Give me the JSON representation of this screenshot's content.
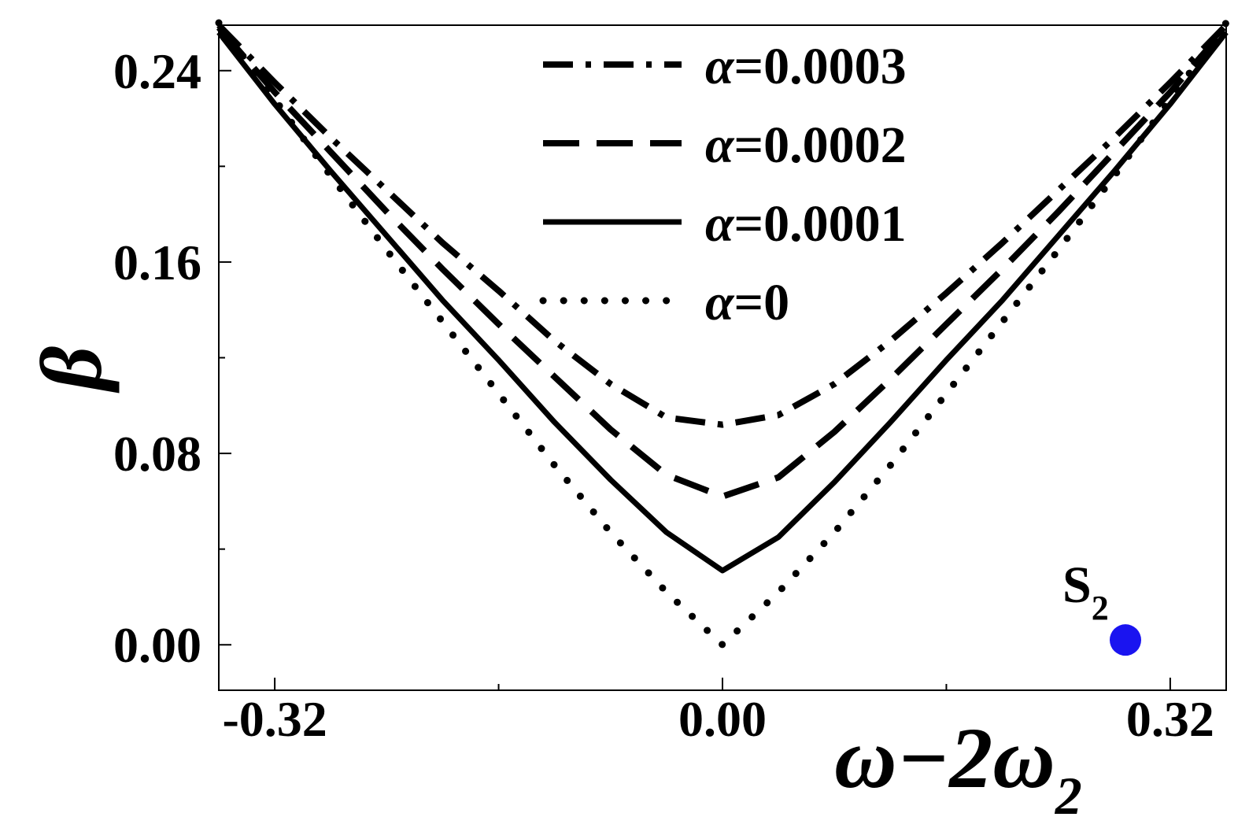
{
  "chart_data": {
    "type": "line",
    "title": "",
    "xlabel": "ω−2ω₂",
    "xlabel_main": "ω−2ω",
    "xlabel_sub": "2",
    "ylabel": "β",
    "xlim": [
      -0.36,
      0.36
    ],
    "ylim": [
      -0.019,
      0.259
    ],
    "x_ticks": [
      -0.32,
      0.0,
      0.32
    ],
    "x_tick_labels": [
      "-0.32",
      "0.00",
      "0.32"
    ],
    "x_minor_ticks": [
      -0.16,
      0.16
    ],
    "y_ticks": [
      0.0,
      0.08,
      0.16,
      0.24
    ],
    "y_tick_labels": [
      "0.00",
      "0.08",
      "0.16",
      "0.24"
    ],
    "y_minor_ticks": [
      0.04,
      0.12,
      0.2
    ],
    "grid": false,
    "legend_position": "top-center",
    "x": [
      -0.36,
      -0.32,
      -0.28,
      -0.24,
      -0.2,
      -0.16,
      -0.12,
      -0.08,
      -0.04,
      0.0,
      0.04,
      0.08,
      0.12,
      0.16,
      0.2,
      0.24,
      0.28,
      0.32,
      0.36
    ],
    "series": [
      {
        "name": "α=0.0003",
        "legend_symbol": "α",
        "legend_value": "=0.0003",
        "style": "dashdot",
        "values": [
          0.259,
          0.235,
          0.212,
          0.19,
          0.168,
          0.148,
          0.127,
          0.109,
          0.095,
          0.092,
          0.096,
          0.109,
          0.127,
          0.147,
          0.168,
          0.19,
          0.212,
          0.235,
          0.259
        ]
      },
      {
        "name": "α=0.0002",
        "legend_symbol": "α",
        "legend_value": "=0.0002",
        "style": "dashed",
        "values": [
          0.258,
          0.231,
          0.206,
          0.181,
          0.157,
          0.134,
          0.112,
          0.09,
          0.071,
          0.062,
          0.07,
          0.089,
          0.111,
          0.134,
          0.157,
          0.181,
          0.206,
          0.231,
          0.258
        ]
      },
      {
        "name": "α=0.0001",
        "legend_symbol": "α",
        "legend_value": "=0.0001",
        "style": "solid",
        "values": [
          0.256,
          0.226,
          0.198,
          0.171,
          0.144,
          0.119,
          0.093,
          0.069,
          0.047,
          0.031,
          0.045,
          0.068,
          0.093,
          0.119,
          0.144,
          0.171,
          0.198,
          0.226,
          0.256
        ]
      },
      {
        "name": "α=0",
        "legend_symbol": "α",
        "legend_value": "=0",
        "style": "dotted",
        "values": [
          0.26,
          0.228,
          0.196,
          0.165,
          0.135,
          0.105,
          0.075,
          0.047,
          0.022,
          0.0,
          0.022,
          0.047,
          0.075,
          0.105,
          0.135,
          0.165,
          0.196,
          0.228,
          0.26
        ]
      }
    ],
    "annotations": [
      {
        "label_main": "S",
        "label_sub": "2",
        "x": 0.288,
        "y": 0.002,
        "marker_color": "#1a14f0"
      }
    ]
  }
}
